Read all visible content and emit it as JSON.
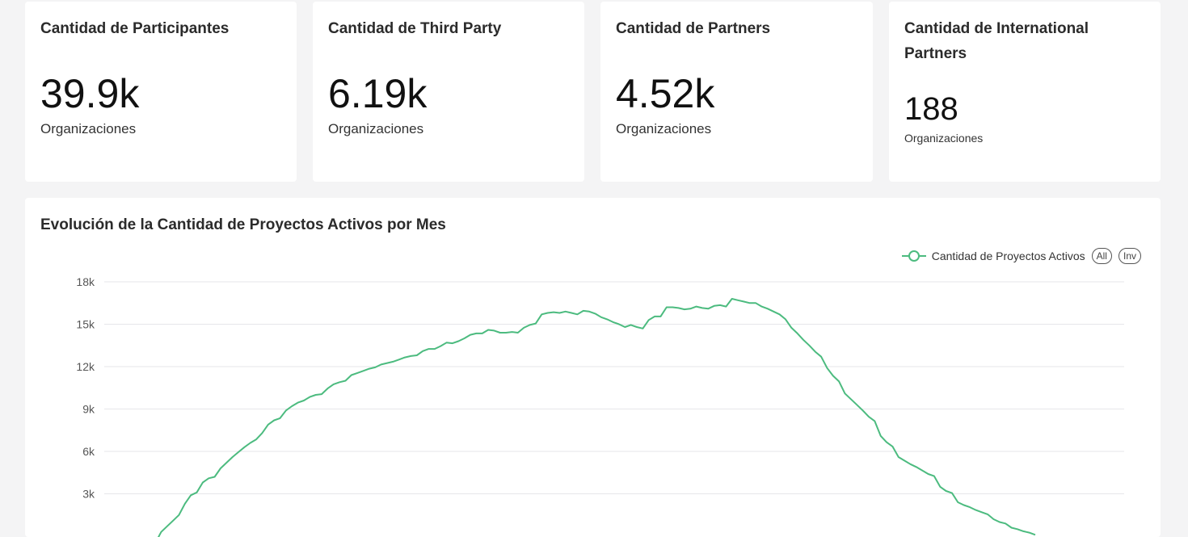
{
  "kpis": [
    {
      "title": "Cantidad de Participantes",
      "value": "39.9k",
      "unit": "Organizaciones"
    },
    {
      "title": "Cantidad de Third Party",
      "value": "6.19k",
      "unit": "Organizaciones"
    },
    {
      "title": "Cantidad de Partners",
      "value": "4.52k",
      "unit": "Organizaciones"
    },
    {
      "title": "Cantidad de International Partners",
      "value": "188",
      "unit": "Organizaciones"
    }
  ],
  "chart_panel": {
    "title": "Evolución de la Cantidad de Proyectos Activos por Mes",
    "legend_all": "All",
    "legend_inv": "Inv"
  },
  "colors": {
    "series": "#4cbb7f",
    "grid": "#e6e6ea"
  },
  "chart_data": {
    "type": "line",
    "title": "Evolución de la Cantidad de Proyectos Activos por Mes",
    "xlabel": "",
    "ylabel": "",
    "ylim": [
      0,
      18000
    ],
    "yticks": [
      3000,
      6000,
      9000,
      12000,
      15000,
      18000
    ],
    "ytick_labels": [
      "3k",
      "6k",
      "9k",
      "12k",
      "15k",
      "18k"
    ],
    "series": [
      {
        "name": "Cantidad de Proyectos Activos",
        "values": [
          -500,
          300,
          700,
          1100,
          1500,
          2300,
          2900,
          3100,
          3800,
          4100,
          4200,
          4800,
          5200,
          5600,
          5950,
          6300,
          6600,
          6850,
          7300,
          7900,
          8200,
          8350,
          8900,
          9200,
          9450,
          9600,
          9850,
          10000,
          10050,
          10450,
          10750,
          10900,
          11000,
          11400,
          11550,
          11700,
          11850,
          11950,
          12150,
          12250,
          12350,
          12500,
          12650,
          12750,
          12800,
          13100,
          13250,
          13250,
          13450,
          13700,
          13650,
          13800,
          14000,
          14250,
          14350,
          14350,
          14600,
          14550,
          14400,
          14400,
          14450,
          14400,
          14750,
          14950,
          15050,
          15700,
          15800,
          15850,
          15800,
          15900,
          15800,
          15700,
          15950,
          15900,
          15750,
          15500,
          15350,
          15150,
          15000,
          14800,
          14950,
          14800,
          14700,
          15300,
          15550,
          15550,
          16200,
          16200,
          16150,
          16050,
          16100,
          16250,
          16150,
          16100,
          16300,
          16350,
          16250,
          16800,
          16700,
          16600,
          16500,
          16500,
          16250,
          16100,
          15900,
          15700,
          15350,
          14750,
          14350,
          13900,
          13500,
          13050,
          12700,
          11900,
          11350,
          10950,
          10100,
          9700,
          9300,
          8900,
          8450,
          8150,
          7100,
          6650,
          6350,
          5600,
          5350,
          5100,
          4900,
          4650,
          4400,
          4250,
          3500,
          3200,
          3050,
          2400,
          2200,
          2050,
          1850,
          1700,
          1550,
          1200,
          1000,
          900,
          600,
          500,
          350,
          250,
          100
        ]
      }
    ],
    "legend": "top-right"
  }
}
